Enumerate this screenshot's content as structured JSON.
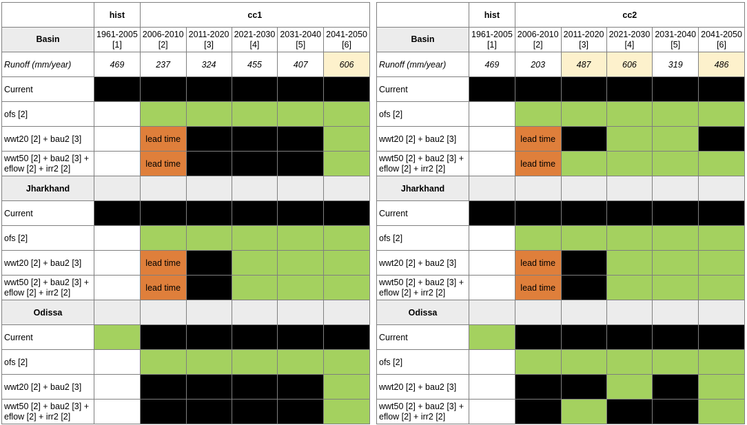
{
  "tables": [
    {
      "id": "left",
      "group_hist": "hist",
      "group_cc": "cc1",
      "basin_label": "Basin",
      "periods": [
        {
          "range": "1961-2005",
          "index": "[1]"
        },
        {
          "range": "2006-2010",
          "index": "[2]"
        },
        {
          "range": "2011-2020",
          "index": "[3]"
        },
        {
          "range": "2021-2030",
          "index": "[4]"
        },
        {
          "range": "2031-2040",
          "index": "[5]"
        },
        {
          "range": "2041-2050",
          "index": "[6]"
        }
      ],
      "runoff_label": "Runoff (mm/year)",
      "runoff_values": [
        "469",
        "237",
        "324",
        "455",
        "407",
        "606"
      ],
      "runoff_colors": [
        "white",
        "white",
        "white",
        "white",
        "white",
        "cream"
      ],
      "sections": [
        {
          "title": "",
          "rows": [
            {
              "label": "Current",
              "cells": [
                "black",
                "black",
                "black",
                "black",
                "black",
                "black"
              ]
            },
            {
              "label": "ofs [2]",
              "cells": [
                "white",
                "green",
                "green",
                "green",
                "green",
                "green"
              ]
            },
            {
              "label": "wwt20 [2] + bau2 [3]",
              "cells": [
                "white",
                "orange",
                "black",
                "black",
                "black",
                "green"
              ]
            },
            {
              "label": "wwt50 [2] + bau2 [3] + eflow [2] + irr2 [2]",
              "cells": [
                "white",
                "orange",
                "black",
                "black",
                "black",
                "green"
              ]
            }
          ]
        },
        {
          "title": "Jharkhand",
          "rows": [
            {
              "label": "Current",
              "cells": [
                "black",
                "black",
                "black",
                "black",
                "black",
                "black"
              ]
            },
            {
              "label": "ofs [2]",
              "cells": [
                "white",
                "green",
                "green",
                "green",
                "green",
                "green"
              ]
            },
            {
              "label": "wwt20 [2] + bau2 [3]",
              "cells": [
                "white",
                "orange",
                "black",
                "green",
                "green",
                "green"
              ]
            },
            {
              "label": "wwt50 [2] + bau2 [3] + eflow [2] + irr2 [2]",
              "cells": [
                "white",
                "orange",
                "black",
                "green",
                "green",
                "green"
              ]
            }
          ]
        },
        {
          "title": "Odissa",
          "rows": [
            {
              "label": "Current",
              "cells": [
                "green",
                "black",
                "black",
                "black",
                "black",
                "black"
              ]
            },
            {
              "label": "ofs [2]",
              "cells": [
                "white",
                "green",
                "green",
                "green",
                "green",
                "green"
              ]
            },
            {
              "label": "wwt20 [2] + bau2 [3]",
              "cells": [
                "white",
                "black",
                "black",
                "black",
                "black",
                "green"
              ]
            },
            {
              "label": "wwt50 [2] + bau2 [3] + eflow [2] + irr2 [2]",
              "cells": [
                "white",
                "black",
                "black",
                "black",
                "black",
                "green"
              ]
            }
          ]
        }
      ]
    },
    {
      "id": "right",
      "group_hist": "hist",
      "group_cc": "cc2",
      "basin_label": "Basin",
      "periods": [
        {
          "range": "1961-2005",
          "index": "[1]"
        },
        {
          "range": "2006-2010",
          "index": "[2]"
        },
        {
          "range": "2011-2020",
          "index": "[3]"
        },
        {
          "range": "2021-2030",
          "index": "[4]"
        },
        {
          "range": "2031-2040",
          "index": "[5]"
        },
        {
          "range": "2041-2050",
          "index": "[6]"
        }
      ],
      "runoff_label": "Runoff (mm/year)",
      "runoff_values": [
        "469",
        "203",
        "487",
        "606",
        "319",
        "486"
      ],
      "runoff_colors": [
        "white",
        "white",
        "cream",
        "cream",
        "white",
        "cream"
      ],
      "sections": [
        {
          "title": "",
          "rows": [
            {
              "label": "Current",
              "cells": [
                "black",
                "black",
                "black",
                "black",
                "black",
                "black"
              ]
            },
            {
              "label": "ofs [2]",
              "cells": [
                "white",
                "green",
                "green",
                "green",
                "green",
                "green"
              ]
            },
            {
              "label": "wwt20 [2] + bau2 [3]",
              "cells": [
                "white",
                "orange",
                "black",
                "green",
                "green",
                "black"
              ]
            },
            {
              "label": "wwt50 [2] + bau2 [3] + eflow [2] + irr2 [2]",
              "cells": [
                "white",
                "orange",
                "green",
                "green",
                "green",
                "green"
              ]
            }
          ]
        },
        {
          "title": "Jharkhand",
          "rows": [
            {
              "label": "Current",
              "cells": [
                "black",
                "black",
                "black",
                "black",
                "black",
                "black"
              ]
            },
            {
              "label": "ofs [2]",
              "cells": [
                "white",
                "green",
                "green",
                "green",
                "green",
                "green"
              ]
            },
            {
              "label": "wwt20 [2] + bau2 [3]",
              "cells": [
                "white",
                "orange",
                "black",
                "green",
                "green",
                "green"
              ]
            },
            {
              "label": "wwt50 [2] + bau2 [3] + eflow [2] + irr2 [2]",
              "cells": [
                "white",
                "orange",
                "black",
                "green",
                "green",
                "green"
              ]
            }
          ]
        },
        {
          "title": "Odissa",
          "rows": [
            {
              "label": "Current",
              "cells": [
                "green",
                "black",
                "black",
                "black",
                "black",
                "black"
              ]
            },
            {
              "label": "ofs [2]",
              "cells": [
                "white",
                "green",
                "green",
                "green",
                "green",
                "green"
              ]
            },
            {
              "label": "wwt20 [2] + bau2 [3]",
              "cells": [
                "white",
                "black",
                "black",
                "green",
                "black",
                "green"
              ]
            },
            {
              "label": "wwt50 [2] + bau2 [3] + eflow [2] + irr2 [2]",
              "cells": [
                "white",
                "black",
                "green",
                "black",
                "black",
                "green"
              ]
            }
          ]
        }
      ]
    }
  ],
  "lead_time_label": "lead time",
  "colors": {
    "green": "#a4d15f",
    "black": "#000000",
    "orange": "#df7f3b",
    "grey": "#ececec",
    "cream": "#fdf1cc",
    "white": "#ffffff"
  }
}
